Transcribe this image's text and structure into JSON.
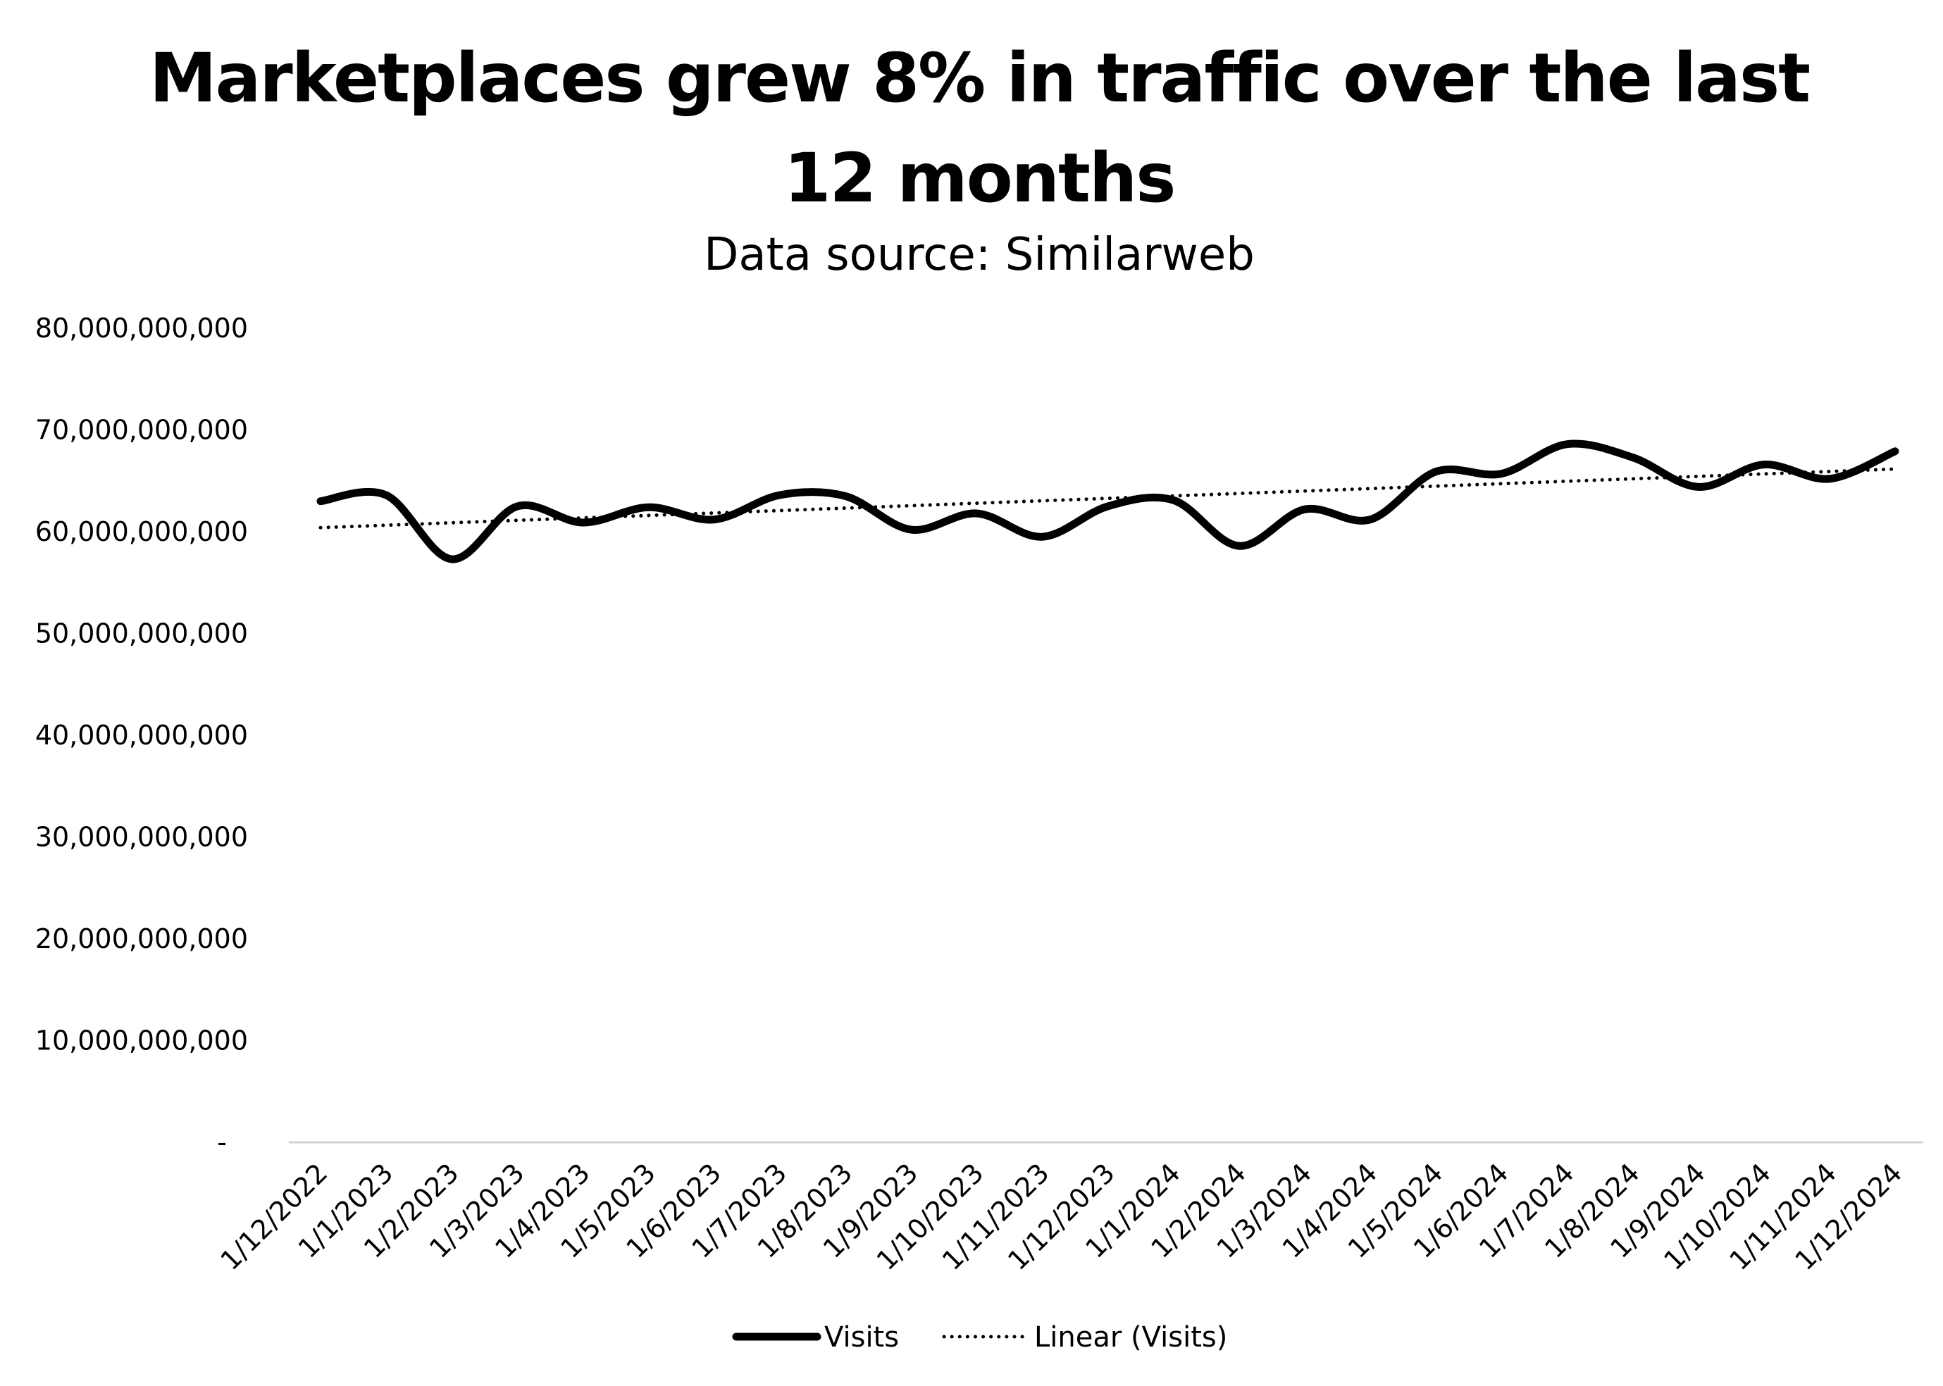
{
  "chart_data": {
    "type": "line",
    "title_lines": [
      "Marketplaces grew 8% in traffic over the last",
      "12 months"
    ],
    "subtitle": "Data source: Similarweb",
    "xlabel": "",
    "ylabel": "",
    "ylim": [
      0,
      80000000000
    ],
    "y_ticks": [
      0,
      10000000000,
      20000000000,
      30000000000,
      40000000000,
      50000000000,
      60000000000,
      70000000000,
      80000000000
    ],
    "y_tick_labels": [
      "-",
      "10,000,000,000",
      "20,000,000,000",
      "30,000,000,000",
      "40,000,000,000",
      "50,000,000,000",
      "60,000,000,000",
      "70,000,000,000",
      "80,000,000,000"
    ],
    "grid": false,
    "legend_position": "bottom",
    "categories": [
      "1/12/2022",
      "1/1/2023",
      "1/2/2023",
      "1/3/2023",
      "1/4/2023",
      "1/5/2023",
      "1/6/2023",
      "1/7/2023",
      "1/8/2023",
      "1/9/2023",
      "1/10/2023",
      "1/11/2023",
      "1/12/2023",
      "1/1/2024",
      "1/2/2024",
      "1/3/2024",
      "1/4/2024",
      "1/5/2024",
      "1/6/2024",
      "1/7/2024",
      "1/8/2024",
      "1/9/2024",
      "1/10/2024",
      "1/11/2024",
      "1/12/2024"
    ],
    "series": [
      {
        "name": "Visits",
        "style": "solid",
        "color": "#000000",
        "values": [
          63000000000,
          63600000000,
          57300000000,
          62500000000,
          60900000000,
          62400000000,
          61200000000,
          63600000000,
          63500000000,
          60200000000,
          61800000000,
          59500000000,
          62500000000,
          63100000000,
          58600000000,
          62200000000,
          61200000000,
          65900000000,
          65700000000,
          68600000000,
          67300000000,
          64400000000,
          66600000000,
          65200000000,
          67900000000
        ]
      },
      {
        "name": "Linear (Visits)",
        "style": "dotted",
        "color": "#000000",
        "values": [
          60400000000,
          60640000000,
          60880000000,
          61120000000,
          61360000000,
          61600000000,
          61840000000,
          62080000000,
          62320000000,
          62560000000,
          62800000000,
          63040000000,
          63280000000,
          63520000000,
          63760000000,
          64000000000,
          64240000000,
          64480000000,
          64720000000,
          64960000000,
          65200000000,
          65440000000,
          65680000000,
          65920000000,
          66160000000
        ]
      }
    ]
  }
}
